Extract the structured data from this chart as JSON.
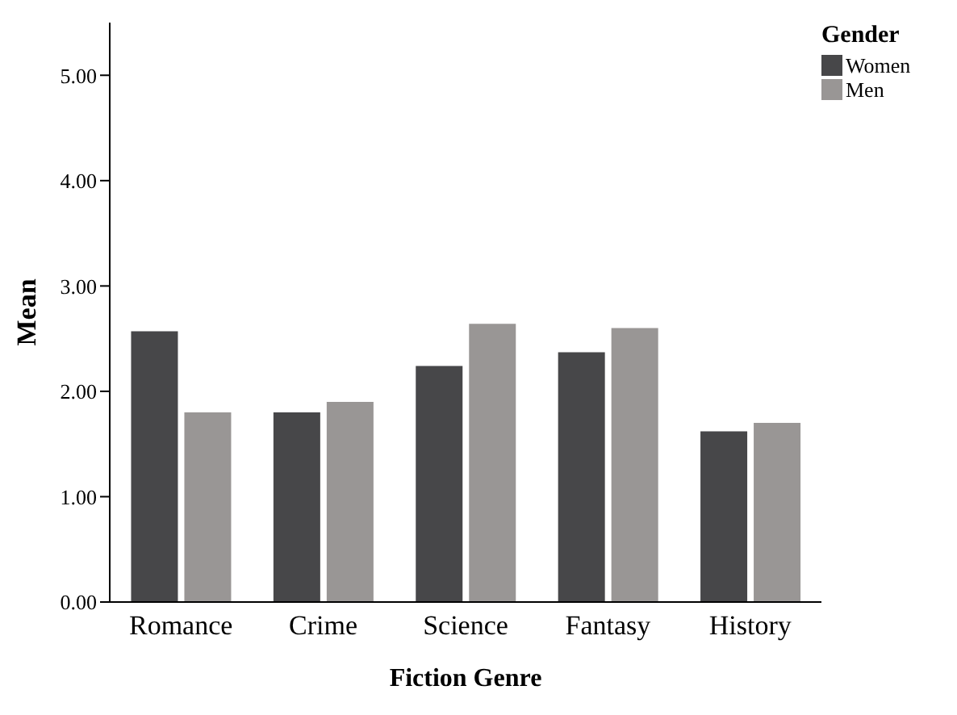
{
  "chart_data": {
    "type": "bar",
    "xlabel": "Fiction Genre",
    "ylabel": "Mean",
    "legend_title": "Gender",
    "categories": [
      "Romance",
      "Crime",
      "Science",
      "Fantasy",
      "History"
    ],
    "series": [
      {
        "name": "Women",
        "color": "#474749",
        "values": [
          2.57,
          1.8,
          2.24,
          2.37,
          1.62
        ]
      },
      {
        "name": "Men",
        "color": "#999695",
        "values": [
          1.8,
          1.9,
          2.64,
          2.6,
          1.7
        ]
      }
    ],
    "ylim": [
      0,
      5.5
    ],
    "yticks": [
      {
        "value": 0,
        "label": "0.00"
      },
      {
        "value": 1,
        "label": "1.00"
      },
      {
        "value": 2,
        "label": "2.00"
      },
      {
        "value": 3,
        "label": "3.00"
      },
      {
        "value": 4,
        "label": "4.00"
      },
      {
        "value": 5,
        "label": "5.00"
      }
    ],
    "grid": false,
    "legend": "top right"
  }
}
